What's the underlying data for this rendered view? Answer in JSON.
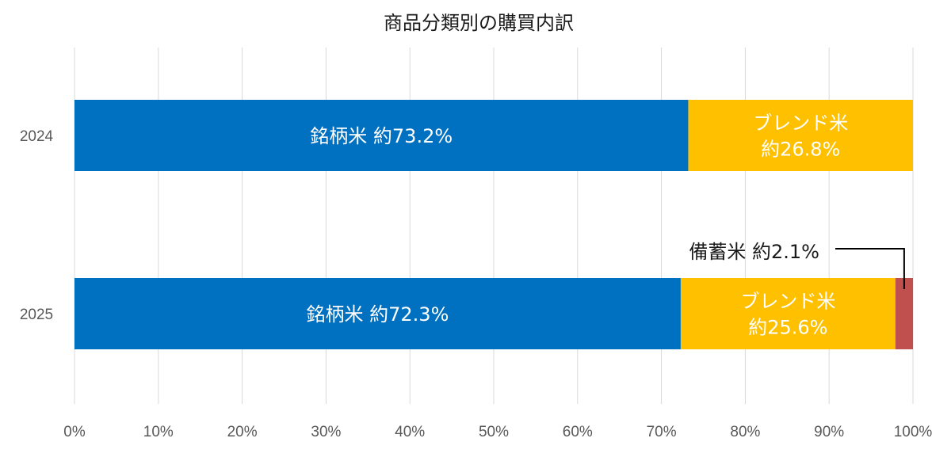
{
  "chart_data": {
    "type": "bar",
    "orientation": "horizontal",
    "stacked": true,
    "title": "商品分類別の購買内訳",
    "categories": [
      "2024",
      "2025"
    ],
    "series": [
      {
        "key": "brand",
        "values": [
          73.2,
          72.3
        ],
        "color": "#0070C0",
        "labels": [
          [
            "銘柄米 約73.2%"
          ],
          [
            "銘柄米 約72.3%"
          ]
        ]
      },
      {
        "key": "blend",
        "values": [
          26.8,
          25.6
        ],
        "color": "#FFC000",
        "labels": [
          [
            "ブレンド米",
            "約26.8%"
          ],
          [
            "ブレンド米",
            "約25.6%"
          ]
        ]
      },
      {
        "key": "stock",
        "values": [
          0,
          2.1
        ],
        "color": "#C0504D",
        "labels": [
          [],
          []
        ]
      }
    ],
    "callout": {
      "text": "備蓄米 約2.1%",
      "category": "2025",
      "series": "stock"
    },
    "xlim": [
      0,
      100
    ],
    "x_ticks": [
      "0%",
      "10%",
      "20%",
      "30%",
      "40%",
      "50%",
      "60%",
      "70%",
      "80%",
      "90%",
      "100%"
    ],
    "grid": true,
    "legend": "none"
  }
}
